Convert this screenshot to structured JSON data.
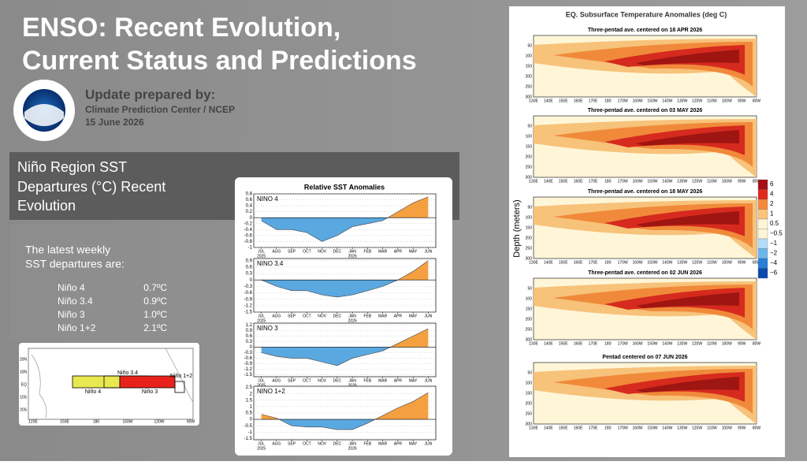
{
  "slide": {
    "title_lines": [
      "ENSO: Recent Evolution,",
      "Current Status and Predictions"
    ],
    "update_label": "Update prepared by:",
    "org": "Climate Prediction Center / NCEP",
    "date": "15 June 2026"
  },
  "panel": {
    "heading_lines": [
      "Niño Region SST",
      "Departures (°C) Recent",
      "Evolution"
    ]
  },
  "latest": {
    "intro_lines": [
      "The latest weekly",
      "SST departures are:"
    ],
    "rows": [
      [
        "Niño 4",
        "0.7ºC"
      ],
      [
        "Niño 3.4",
        "0.9ºC"
      ],
      [
        "Niño 3",
        "1.0ºC"
      ],
      [
        "Niño 1+2",
        "2.1ºC"
      ]
    ]
  },
  "map": {
    "boxes": [
      "Niño 4",
      "Niño 3.4",
      "Niño 3",
      "Niño 1+2"
    ],
    "lat_labels": [
      "20N",
      "10N",
      "EQ",
      "10S",
      "20S"
    ],
    "lon_labels": [
      "120E",
      "150E",
      "180",
      "150W",
      "120W",
      "90W"
    ]
  },
  "sst": {
    "title": "Relative SST Anomalies",
    "years": [
      "2025",
      "2026"
    ]
  },
  "chart_data": [
    {
      "type": "area",
      "label": "NINO 4",
      "categories": [
        "JUL",
        "AUG",
        "SEP",
        "OCT",
        "NOV",
        "DEC",
        "JAN",
        "FEB",
        "MAR",
        "APR",
        "MAY",
        "JUN"
      ],
      "values": [
        -0.1,
        -0.4,
        -0.4,
        -0.5,
        -0.8,
        -0.6,
        -0.3,
        -0.2,
        -0.1,
        0.2,
        0.5,
        0.7
      ],
      "ylim": [
        -1,
        0.8
      ],
      "yticks": [
        0.8,
        0.6,
        0.4,
        0.2,
        0,
        -0.2,
        -0.4,
        -0.6,
        -0.8,
        -1
      ],
      "colors": {
        "positive": "#f5a040",
        "negative": "#5aa8e0"
      }
    },
    {
      "type": "area",
      "label": "NINO 3.4",
      "categories": [
        "JUL",
        "AUG",
        "SEP",
        "OCT",
        "NOV",
        "DEC",
        "JAN",
        "FEB",
        "MAR",
        "APR",
        "MAY",
        "JUN"
      ],
      "values": [
        0,
        -0.3,
        -0.5,
        -0.5,
        -0.7,
        -0.8,
        -0.7,
        -0.5,
        -0.3,
        0,
        0.4,
        0.9
      ],
      "ylim": [
        -1.5,
        1
      ],
      "yticks": [
        0.9,
        0.6,
        0.3,
        0,
        -0.3,
        -0.6,
        -0.9,
        -1.2,
        -1.5
      ],
      "colors": {
        "positive": "#f5a040",
        "negative": "#5aa8e0"
      }
    },
    {
      "type": "area",
      "label": "NINO 3",
      "categories": [
        "JUL",
        "AUG",
        "SEP",
        "OCT",
        "NOV",
        "DEC",
        "JAN",
        "FEB",
        "MAR",
        "APR",
        "MAY",
        "JUN"
      ],
      "values": [
        -0.3,
        -0.5,
        -0.6,
        -0.6,
        -0.8,
        -1,
        -0.6,
        -0.4,
        -0.2,
        0.2,
        0.6,
        1
      ],
      "ylim": [
        -1.6,
        1.3
      ],
      "yticks": [
        1.2,
        0.9,
        0.6,
        0.3,
        0,
        -0.3,
        -0.6,
        -0.9,
        -1.2,
        -1.5
      ],
      "colors": {
        "positive": "#f5a040",
        "negative": "#5aa8e0"
      }
    },
    {
      "type": "area",
      "label": "NINO 1+2",
      "categories": [
        "JUL",
        "AUG",
        "SEP",
        "OCT",
        "NOV",
        "DEC",
        "JAN",
        "FEB",
        "MAR",
        "APR",
        "MAY",
        "JUN"
      ],
      "values": [
        0.4,
        0.1,
        -0.5,
        -0.6,
        -0.6,
        -0.8,
        -0.8,
        -0.3,
        0.3,
        0.9,
        1.4,
        2.1
      ],
      "ylim": [
        -1.6,
        2.6
      ],
      "yticks": [
        2.5,
        2,
        1.5,
        1,
        0.5,
        0,
        -0.5,
        -1,
        -1.5
      ],
      "colors": {
        "positive": "#f5a040",
        "negative": "#5aa8e0"
      }
    }
  ],
  "subsurface": {
    "title": "EQ. Subsurface Temperature Anomalies (deg C)",
    "y_label": "Depth (meters)",
    "panels": [
      "Three-pentad ave. centered on 18 APR 2026",
      "Three-pentad ave. centered on 03 MAY 2026",
      "Three-pentad ave. centered on 18 MAY 2026",
      "Three-pentad ave. centered on 02 JUN 2026",
      "Pentad centered on 07 JUN 2026"
    ],
    "depths": [
      "50",
      "100",
      "150",
      "200",
      "250",
      "300"
    ],
    "lons": [
      "130E",
      "140E",
      "150E",
      "160E",
      "170E",
      "180",
      "170W",
      "160W",
      "150W",
      "140W",
      "130W",
      "120W",
      "110W",
      "100W",
      "90W",
      "80W"
    ],
    "colorbar": [
      "6",
      "4",
      "2",
      "1",
      "0.5",
      "−0.5",
      "−1",
      "−2",
      "−4",
      "−6"
    ]
  }
}
